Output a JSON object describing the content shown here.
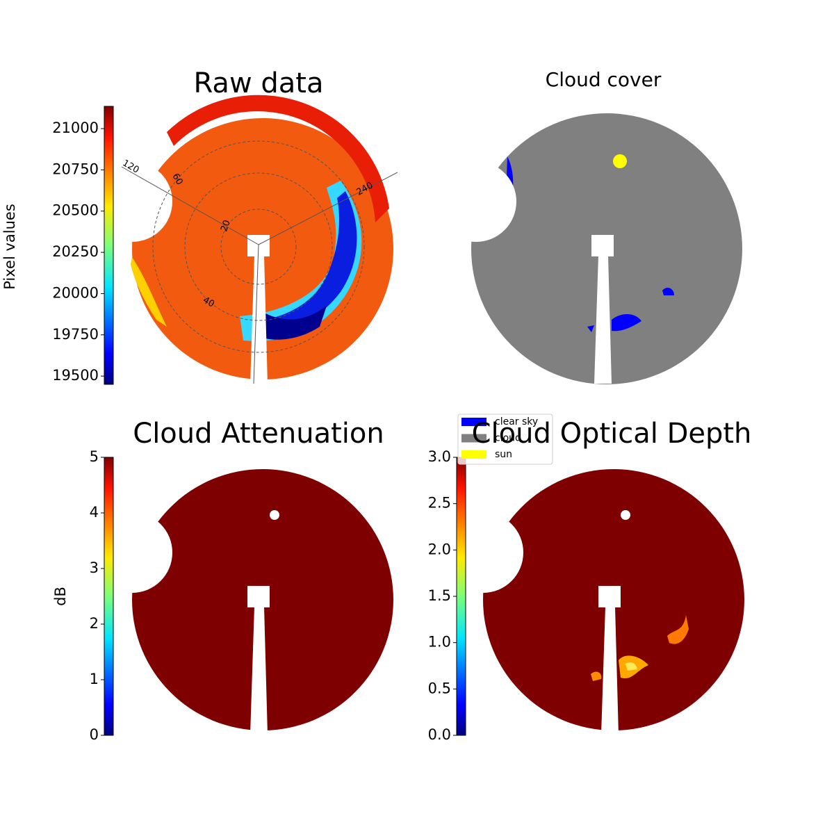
{
  "chart_data": [
    {
      "type": "image",
      "title": "Raw data",
      "colorbar_label": "Pixel values",
      "clim": [
        19450,
        21135
      ],
      "cticks": [
        19500,
        19750,
        20000,
        20250,
        20500,
        20750,
        21000
      ],
      "polar_labels": [
        "120",
        "240",
        "20",
        "40",
        "60"
      ]
    },
    {
      "type": "image",
      "title": "Cloud cover",
      "legend": [
        {
          "name": "clear sky",
          "color": "#0000ff"
        },
        {
          "name": "cloud",
          "color": "#808080"
        },
        {
          "name": "sun",
          "color": "#ffff00"
        }
      ]
    },
    {
      "type": "image",
      "title": "Cloud Attenuation",
      "colorbar_label": "dB",
      "clim": [
        0,
        5
      ],
      "cticks": [
        0,
        1,
        2,
        3,
        4,
        5
      ]
    },
    {
      "type": "image",
      "title": "Cloud Optical Depth",
      "clim": [
        0,
        3
      ],
      "cticks": [
        {
          "value": 0,
          "label": "0.0"
        },
        0.5,
        {
          "value": 1,
          "label": "1.0"
        },
        1.5,
        {
          "value": 2,
          "label": "2.0"
        },
        2.5,
        {
          "value": 3,
          "label": "3.0"
        }
      ]
    }
  ]
}
